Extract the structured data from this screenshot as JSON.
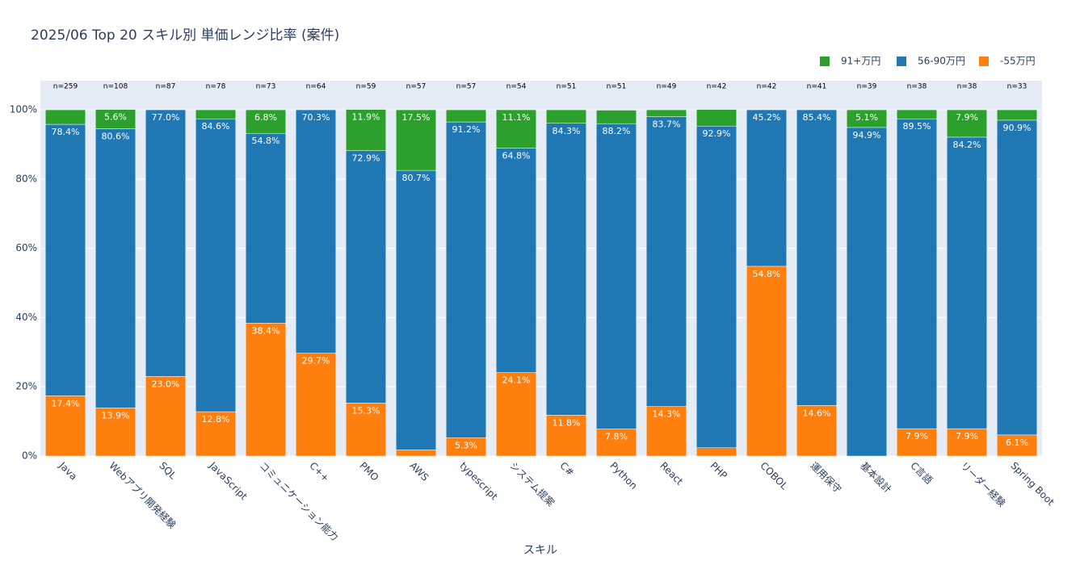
{
  "chart_data": {
    "type": "stacked_bar",
    "title": "2025/06 Top 20 スキル別 単価レンジ比率 (案件)",
    "x_label": "スキル",
    "categories": [
      "Java",
      "Webアプリ開発経験",
      "SQL",
      "JavaScript",
      "コミュニケーション能力",
      "C++",
      "PMO",
      "AWS",
      "typescript",
      "システム提案",
      "C#",
      "Python",
      "React",
      "PHP",
      "COBOL",
      "運用保守",
      "基本設計",
      "C言語",
      "リーダー経験",
      "Spring Boot"
    ],
    "annotations": [
      "n=259",
      "n=108",
      "n=87",
      "n=78",
      "n=73",
      "n=64",
      "n=59",
      "n=57",
      "n=57",
      "n=54",
      "n=51",
      "n=51",
      "n=49",
      "n=42",
      "n=42",
      "n=41",
      "n=39",
      "n=38",
      "n=38",
      "n=33"
    ],
    "series": [
      {
        "name": "-55万円",
        "color": "#ff7f0e",
        "values": [
          17.4,
          13.9,
          23.0,
          12.8,
          38.4,
          29.7,
          15.3,
          1.8,
          5.3,
          24.1,
          11.8,
          7.8,
          14.3,
          2.4,
          54.8,
          14.6,
          0,
          7.9,
          7.9,
          6.1
        ],
        "value_labels": [
          "17.4%",
          "13.9%",
          "23.0%",
          "12.8%",
          "38.4%",
          "29.7%",
          "15.3%",
          null,
          "5.3%",
          "24.1%",
          "11.8%",
          "7.8%",
          "14.3%",
          null,
          "54.8%",
          "14.6%",
          null,
          "7.9%",
          "7.9%",
          "6.1%"
        ]
      },
      {
        "name": "56-90万円",
        "color": "#1f77b4",
        "values": [
          78.4,
          80.6,
          77.0,
          84.6,
          54.8,
          70.3,
          72.9,
          80.7,
          91.2,
          64.8,
          84.3,
          88.2,
          83.7,
          92.9,
          45.2,
          85.4,
          94.9,
          89.5,
          84.2,
          90.9
        ],
        "value_labels": [
          "78.4%",
          "80.6%",
          "77.0%",
          "84.6%",
          "54.8%",
          "70.3%",
          "72.9%",
          "80.7%",
          "91.2%",
          "64.8%",
          "84.3%",
          "88.2%",
          "83.7%",
          "92.9%",
          "45.2%",
          "85.4%",
          "94.9%",
          "89.5%",
          "84.2%",
          "90.9%"
        ]
      },
      {
        "name": "91+万円",
        "color": "#2ca02c",
        "values": [
          4.2,
          5.6,
          0,
          2.6,
          6.8,
          0,
          11.9,
          17.5,
          3.5,
          11.1,
          3.9,
          3.9,
          2.0,
          4.8,
          0,
          0,
          5.1,
          2.6,
          7.9,
          3.0
        ],
        "value_labels": [
          null,
          "5.6%",
          null,
          null,
          "6.8%",
          null,
          "11.9%",
          "17.5%",
          null,
          "11.1%",
          null,
          null,
          null,
          null,
          null,
          null,
          "5.1%",
          null,
          "7.9%",
          null
        ]
      }
    ],
    "ylim": [
      0,
      108.4
    ],
    "yticks": [
      {
        "value": 0,
        "label": "0%"
      },
      {
        "value": 20,
        "label": "20%"
      },
      {
        "value": 40,
        "label": "40%"
      },
      {
        "value": 60,
        "label": "60%"
      },
      {
        "value": 80,
        "label": "80%"
      },
      {
        "value": 100,
        "label": "100%"
      }
    ],
    "grid": true
  }
}
